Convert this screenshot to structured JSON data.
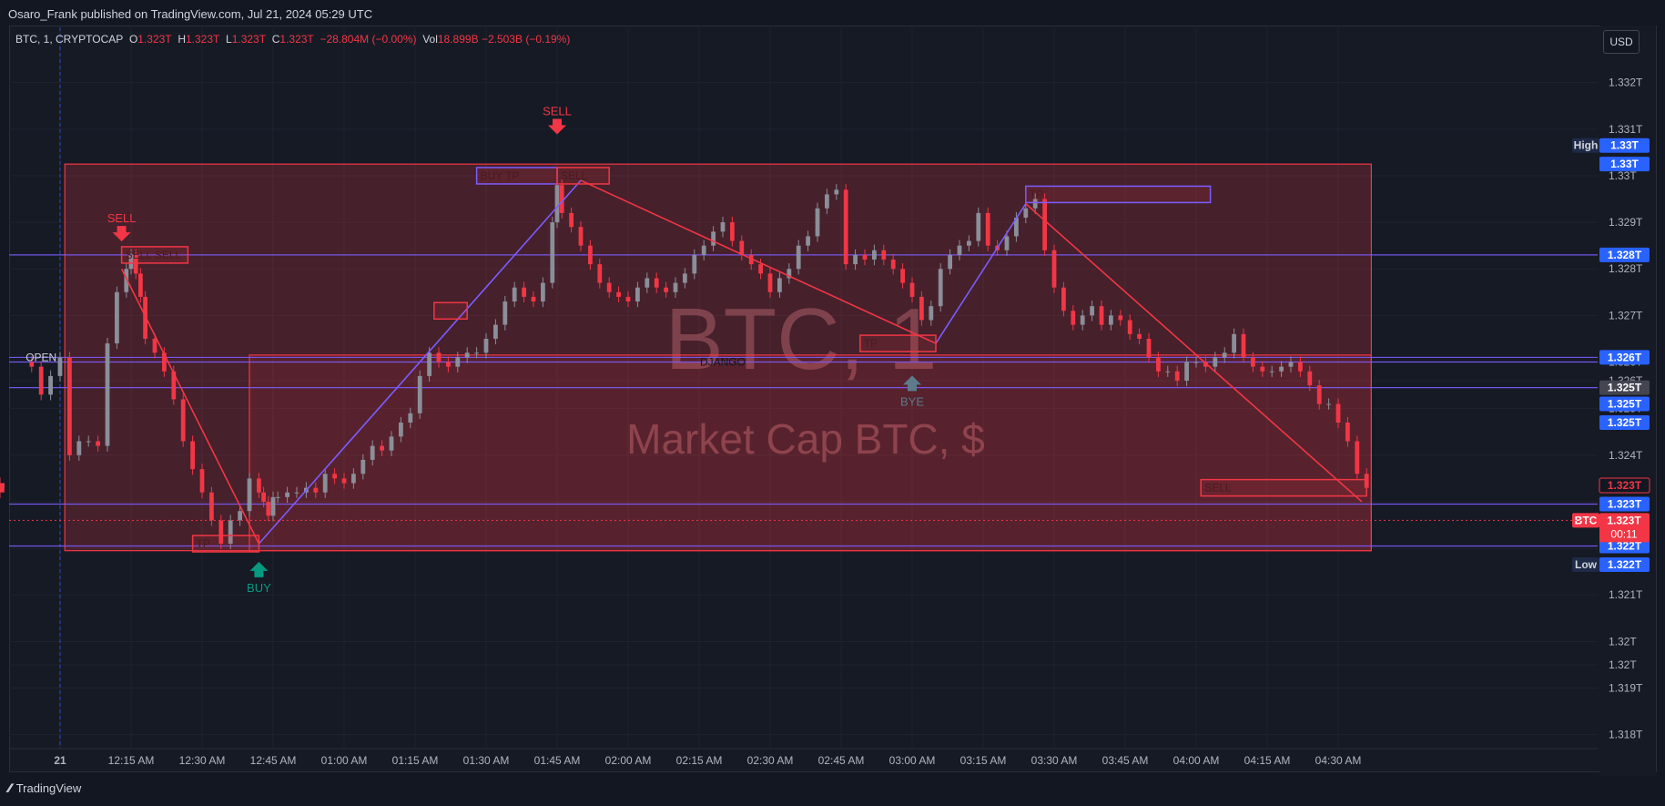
{
  "header": {
    "published": "Osaro_Frank published on TradingView.com, Jul 21, 2024 05:29 UTC"
  },
  "legend": {
    "symbol": "BTC, 1, CRYPTOCAP",
    "o_label": "O",
    "o_value": "1.323T",
    "h_label": "H",
    "h_value": "1.323T",
    "l_label": "L",
    "l_value": "1.323T",
    "c_label": "C",
    "c_value": "1.323T",
    "change": "−28.804M (−0.00%)",
    "vol_label": "Vol",
    "vol_value": "18.899B",
    "vol_change": "−2.503B (−0.19%)"
  },
  "currency": "USD",
  "footer": {
    "brand": "TradingView"
  },
  "watermark": {
    "title": "BTC, 1",
    "subtitle": "Market Cap BTC, $"
  },
  "chart_data": {
    "type": "candlestick",
    "symbol": "BTC",
    "interval": "1",
    "ylim": [
      1.3177,
      1.3326
    ],
    "y_ticks": [
      "1.332T",
      "1.331T",
      "1.33T",
      "1.329T",
      "1.328T",
      "1.327T",
      "1.326T",
      "1.326T",
      "1.325T",
      "1.324T",
      "1.323T",
      "1.322T",
      "1.321T",
      "1.32T",
      "1.32T",
      "1.319T",
      "1.318T"
    ],
    "y_tick_values": [
      1.332,
      1.331,
      1.33,
      1.329,
      1.328,
      1.327,
      1.326,
      1.3256,
      1.325,
      1.324,
      1.323,
      1.322,
      1.321,
      1.32,
      1.3195,
      1.319,
      1.318
    ],
    "x_ticks": [
      "21",
      "12:15 AM",
      "12:30 AM",
      "12:45 AM",
      "01:00 AM",
      "01:15 AM",
      "01:30 AM",
      "01:45 AM",
      "02:00 AM",
      "02:15 AM",
      "02:30 AM",
      "02:45 AM",
      "03:00 AM",
      "03:15 AM",
      "03:30 AM",
      "03:45 AM",
      "04:00 AM",
      "04:15 AM",
      "04:30 AM"
    ],
    "x_tick_minutes": [
      0,
      15,
      30,
      45,
      60,
      75,
      90,
      105,
      120,
      135,
      150,
      165,
      180,
      195,
      210,
      225,
      240,
      255,
      270
    ],
    "close_series_minutes": [
      -8,
      -6,
      -4,
      -2,
      0,
      2,
      4,
      6,
      8,
      10,
      12,
      14,
      15,
      16,
      17,
      18,
      20,
      22,
      24,
      26,
      28,
      30,
      32,
      34,
      36,
      38,
      40,
      42,
      43,
      44,
      45,
      46,
      48,
      50,
      52,
      54,
      56,
      58,
      60,
      62,
      64,
      66,
      68,
      70,
      72,
      74,
      76,
      78,
      80,
      82,
      84,
      86,
      88,
      90,
      92,
      94,
      96,
      98,
      100,
      102,
      104,
      105,
      106,
      108,
      110,
      112,
      114,
      116,
      118,
      120,
      122,
      124,
      126,
      128,
      130,
      132,
      134,
      136,
      138,
      140,
      142,
      144,
      146,
      148,
      150,
      152,
      154,
      156,
      158,
      160,
      162,
      164,
      166,
      168,
      170,
      172,
      174,
      176,
      178,
      180,
      182,
      184,
      186,
      188,
      190,
      192,
      194,
      196,
      198,
      200,
      202,
      204,
      206,
      208,
      210,
      212,
      214,
      216,
      218,
      220,
      222,
      224,
      226,
      228,
      230,
      232,
      234,
      236,
      238,
      240,
      242,
      244,
      246,
      248,
      250,
      252,
      254,
      256,
      258,
      260,
      262,
      264,
      266,
      268,
      270,
      272,
      274,
      276
    ],
    "close_series": [
      1.326,
      1.3259,
      1.3253,
      1.3257,
      1.3261,
      1.324,
      1.3243,
      1.3243,
      1.3242,
      1.3264,
      1.3275,
      1.328,
      1.3283,
      1.3279,
      1.3274,
      1.3265,
      1.3262,
      1.3258,
      1.3252,
      1.3243,
      1.3237,
      1.3232,
      1.3226,
      1.3221,
      1.3226,
      1.3228,
      1.3235,
      1.3232,
      1.323,
      1.3227,
      1.3231,
      1.3231,
      1.3232,
      1.3232,
      1.3233,
      1.3232,
      1.3236,
      1.3235,
      1.3234,
      1.3236,
      1.3239,
      1.3242,
      1.3241,
      1.3244,
      1.3247,
      1.3249,
      1.3257,
      1.3262,
      1.326,
      1.3259,
      1.3261,
      1.3262,
      1.3262,
      1.3265,
      1.3268,
      1.3273,
      1.3276,
      1.3274,
      1.3273,
      1.3277,
      1.329,
      1.3298,
      1.3292,
      1.3289,
      1.3285,
      1.3281,
      1.3277,
      1.3275,
      1.3274,
      1.3273,
      1.3276,
      1.3278,
      1.3276,
      1.3275,
      1.3277,
      1.3279,
      1.3283,
      1.3285,
      1.3288,
      1.329,
      1.3286,
      1.3283,
      1.3281,
      1.3279,
      1.3275,
      1.3278,
      1.328,
      1.3285,
      1.3287,
      1.3293,
      1.3296,
      1.3297,
      1.3281,
      1.3283,
      1.3282,
      1.3284,
      1.3282,
      1.328,
      1.3277,
      1.3274,
      1.3269,
      1.3272,
      1.328,
      1.3283,
      1.3285,
      1.3286,
      1.3292,
      1.3285,
      1.3284,
      1.3287,
      1.3291,
      1.3293,
      1.3295,
      1.3284,
      1.3276,
      1.3271,
      1.3268,
      1.327,
      1.3272,
      1.3268,
      1.327,
      1.3269,
      1.3266,
      1.3265,
      1.3261,
      1.3258,
      1.3258,
      1.3256,
      1.326,
      1.326,
      1.3259,
      1.3261,
      1.3262,
      1.3266,
      1.3261,
      1.3259,
      1.3258,
      1.3258,
      1.3259,
      1.326,
      1.3258,
      1.3255,
      1.3251,
      1.3251,
      1.3247,
      1.3243,
      1.3236,
      1.3233,
      1.3234,
      1.3232
    ],
    "zones": [
      {
        "name": "range",
        "from_min": 1,
        "to_min": 277,
        "ymin": 1.32195,
        "ymax": 1.33025
      },
      {
        "name": "sell-zone",
        "from_min": 40,
        "to_min": 277,
        "ymin": 1.32195,
        "ymax": 1.32615
      }
    ],
    "horizontal_levels": [
      1.3283,
      1.3261,
      1.326,
      1.32545,
      1.32295,
      1.32205
    ],
    "trend_lines": [
      [
        [
          13,
          1.328
        ],
        [
          42,
          1.3221
        ],
        [
          110,
          1.3299
        ],
        [
          185,
          1.3264
        ],
        [
          204,
          1.3294
        ],
        [
          275,
          1.323
        ]
      ]
    ],
    "price_labels": [
      {
        "text": "High",
        "y": 1.33065,
        "bg": "#1e2a47",
        "fg": "#d1d4dc"
      },
      {
        "text": "1.33T",
        "y": 1.33065,
        "bg": "#2962ff",
        "fg": "#ffffff"
      },
      {
        "text": "1.33T",
        "y": 1.33025,
        "bg": "#2962ff",
        "fg": "#ffffff"
      },
      {
        "text": "1.328T",
        "y": 1.3283,
        "bg": "#2962ff",
        "fg": "#ffffff"
      },
      {
        "text": "1.326T",
        "y": 1.3261,
        "bg": "#2962ff",
        "fg": "#ffffff"
      },
      {
        "text": "1.325T",
        "y": 1.32545,
        "bg": "#434651",
        "fg": "#ffffff"
      },
      {
        "text": "1.325T",
        "y": 1.3251,
        "bg": "#2962ff",
        "fg": "#ffffff"
      },
      {
        "text": "1.325T",
        "y": 1.3247,
        "bg": "#2962ff",
        "fg": "#ffffff"
      },
      {
        "text": "1.323T",
        "y": 1.32335,
        "bg": "#131722",
        "fg": "#f23645"
      },
      {
        "text": "1.323T",
        "y": 1.32295,
        "bg": "#2962ff",
        "fg": "#ffffff"
      },
      {
        "text": "BTC",
        "y": 1.3226,
        "bg": "#f23645",
        "fg": "#ffffff"
      },
      {
        "text": "1.322T",
        "y": 1.32205,
        "bg": "#2962ff",
        "fg": "#ffffff"
      },
      {
        "text": "Low",
        "y": 1.32165,
        "bg": "#1e2a47",
        "fg": "#d1d4dc"
      },
      {
        "text": "1.322T",
        "y": 1.32165,
        "bg": "#2962ff",
        "fg": "#ffffff"
      }
    ],
    "last_price_box": {
      "price": "1.323T",
      "countdown": "00:11",
      "y": 1.3226
    },
    "annotations": [
      {
        "text": "SELL",
        "min": 13,
        "y": 1.329,
        "color": "#f23645",
        "arrow": "down"
      },
      {
        "text": "SELL",
        "min": 105,
        "y": 1.3313,
        "color": "#f23645",
        "arrow": "down"
      },
      {
        "text": "BUY",
        "min": 42,
        "y": 1.3213,
        "color": "#089981",
        "arrow": "up"
      },
      {
        "text": "BYE",
        "min": 180,
        "y": 1.3253,
        "color": "#5d7b8a",
        "arrow": "up"
      },
      {
        "text": "OPEN",
        "min": -4,
        "y": 1.3261,
        "color": "#d1d4dc",
        "arrow": "none"
      },
      {
        "text": "DJANGO",
        "min": 140,
        "y": 1.326,
        "color": "#131722",
        "arrow": "none"
      }
    ],
    "label_boxes": [
      {
        "text": "SELL SELL",
        "from": 13,
        "to": 27,
        "y": 1.3283,
        "border": "#f23645"
      },
      {
        "text": "TP",
        "from": 28,
        "to": 42,
        "y": 1.3221,
        "border": "#f23645"
      },
      {
        "text": "BUY TP",
        "from": 88,
        "to": 105,
        "y": 1.33,
        "border": "#7b5cff"
      },
      {
        "text": "SELL",
        "from": 105,
        "to": 116,
        "y": 1.33,
        "border": "#f23645"
      },
      {
        "text": "",
        "from": 79,
        "to": 86,
        "y": 1.3271,
        "border": "#f23645"
      },
      {
        "text": "TP",
        "from": 169,
        "to": 185,
        "y": 1.3264,
        "border": "#f23645"
      },
      {
        "text": "TP",
        "from": 204,
        "to": 243,
        "y": 1.3296,
        "border": "#7b5cff"
      },
      {
        "text": "SELL",
        "from": 241,
        "to": 276,
        "y": 1.3233,
        "border": "#f23645"
      }
    ]
  }
}
